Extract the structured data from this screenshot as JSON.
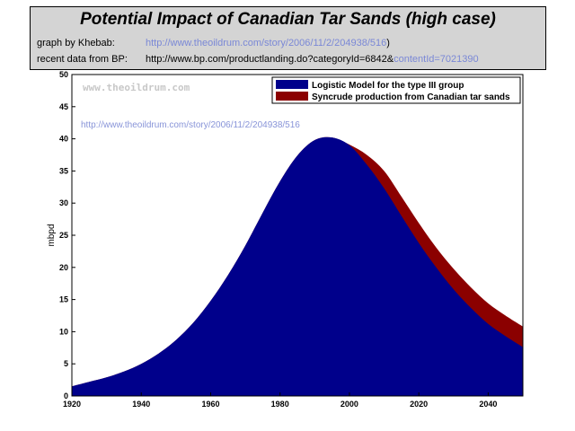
{
  "header": {
    "title": "Potential Impact of Canadian Tar Sands (high case)",
    "credit_label_1": "graph by Khebab:",
    "credit_url_1": "http://www.theoildrum.com/story/2006/11/2/204938/516",
    "credit_close_1": ")",
    "credit_label_2": "recent data from BP:",
    "credit_url_2a": "http://www.bp.com/productlanding.do?categoryId=6842&",
    "credit_url_2b": "contentId=7021390"
  },
  "chart_data": {
    "type": "area",
    "stacked": true,
    "title": "",
    "xlabel": "",
    "ylabel": "mbpd",
    "xlim": [
      1920,
      2050
    ],
    "ylim": [
      0,
      50
    ],
    "xticks": [
      1920,
      1940,
      1960,
      1980,
      2000,
      2020,
      2040
    ],
    "yticks": [
      0,
      5,
      10,
      15,
      20,
      25,
      30,
      35,
      40,
      45,
      50
    ],
    "grid": false,
    "legend_position": "top-right",
    "watermark": "www.theoildrum.com",
    "annotation": "http://www.theoildrum.com/story/2006/11/2/204938/516",
    "x": [
      1920,
      1925,
      1930,
      1935,
      1940,
      1945,
      1950,
      1955,
      1960,
      1965,
      1970,
      1975,
      1980,
      1985,
      1990,
      1995,
      2000,
      2005,
      2010,
      2015,
      2020,
      2025,
      2030,
      2035,
      2040,
      2045,
      2050
    ],
    "series": [
      {
        "name": "Logistic Model for the type III group",
        "color": "#00008b",
        "values": [
          1.5,
          2.2,
          2.9,
          3.8,
          5.0,
          6.6,
          8.7,
          11.4,
          14.8,
          18.8,
          23.4,
          28.5,
          33.4,
          37.4,
          39.8,
          40.2,
          39.0,
          36.0,
          32.3,
          28.0,
          23.8,
          20.0,
          16.6,
          13.7,
          11.2,
          9.3,
          7.6
        ]
      },
      {
        "name": "Syncrude production from Canadian tar sands",
        "color": "#8b0000",
        "values": [
          0,
          0,
          0,
          0,
          0,
          0,
          0,
          0,
          0,
          0,
          0,
          0,
          0,
          0,
          0,
          0,
          0.1,
          1.5,
          2.7,
          3.0,
          3.1,
          3.1,
          3.2,
          3.2,
          3.2,
          3.2,
          3.2
        ]
      }
    ]
  }
}
